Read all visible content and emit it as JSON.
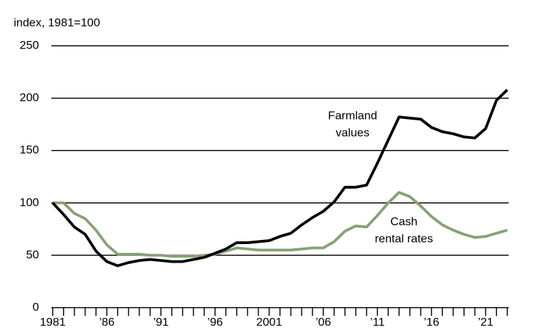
{
  "chart_data": {
    "type": "line",
    "y_axis_label": "index, 1981=100",
    "x": [
      1981,
      1982,
      1983,
      1984,
      1985,
      1986,
      1987,
      1988,
      1989,
      1990,
      1991,
      1992,
      1993,
      1994,
      1995,
      1996,
      1997,
      1998,
      1999,
      2000,
      2001,
      2002,
      2003,
      2004,
      2005,
      2006,
      2007,
      2008,
      2009,
      2010,
      2011,
      2012,
      2013,
      2014,
      2015,
      2016,
      2017,
      2018,
      2019,
      2020,
      2021,
      2022,
      2023
    ],
    "series": [
      {
        "color": "#000000",
        "values": [
          100,
          89,
          77,
          70,
          54,
          44,
          40,
          43,
          45,
          46,
          45,
          44,
          44,
          46,
          48,
          52,
          56,
          62,
          62,
          63,
          64,
          68,
          71,
          79,
          86,
          92,
          101,
          115,
          115,
          117,
          138,
          160,
          182,
          181,
          180,
          172,
          168,
          166,
          163,
          162,
          171,
          198,
          208
        ]
      },
      {
        "color": "#87a178",
        "values": [
          100,
          100,
          90,
          85,
          74,
          60,
          51,
          51,
          51,
          50,
          50,
          49,
          49,
          49,
          50,
          51,
          54,
          57,
          56,
          55,
          55,
          55,
          55,
          56,
          57,
          57,
          63,
          73,
          78,
          77,
          88,
          100,
          110,
          106,
          97,
          87,
          79,
          74,
          70,
          67,
          68,
          71,
          74
        ]
      }
    ],
    "annotations": [
      {
        "lines": [
          "Farmland",
          "values"
        ]
      },
      {
        "lines": [
          "Cash",
          "rental rates"
        ]
      }
    ],
    "xlim": [
      1981,
      2023
    ],
    "xticks": [
      {
        "value": 1981,
        "label": "1981"
      },
      {
        "value": 1986,
        "label": "’86"
      },
      {
        "value": 1991,
        "label": "’91"
      },
      {
        "value": 1996,
        "label": "’96"
      },
      {
        "value": 2001,
        "label": "2001"
      },
      {
        "value": 2006,
        "label": "’06"
      },
      {
        "value": 2011,
        "label": "’11"
      },
      {
        "value": 2016,
        "label": "’16"
      },
      {
        "value": 2021,
        "label": "’21"
      }
    ],
    "ylim": [
      0,
      250
    ],
    "yticks": [
      0,
      50,
      100,
      150,
      200,
      250
    ],
    "grid": true
  }
}
